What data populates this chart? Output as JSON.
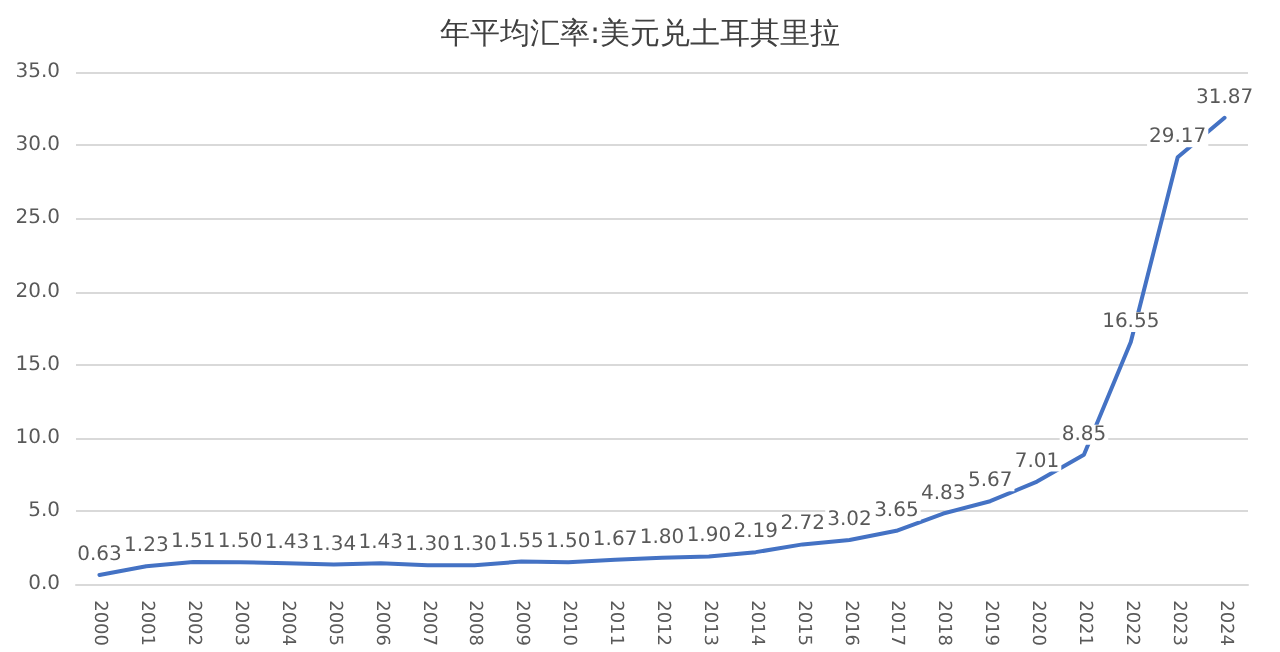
{
  "chart_data": {
    "type": "line",
    "title": "年平均汇率:美元兑土耳其里拉",
    "categories": [
      "2000",
      "2001",
      "2002",
      "2003",
      "2004",
      "2005",
      "2006",
      "2007",
      "2008",
      "2009",
      "2010",
      "2011",
      "2012",
      "2013",
      "2014",
      "2015",
      "2016",
      "2017",
      "2018",
      "2019",
      "2020",
      "2021",
      "2022",
      "2023",
      "2024"
    ],
    "series": [
      {
        "color": "#4472c4",
        "values": [
          0.63,
          1.23,
          1.51,
          1.5,
          1.43,
          1.34,
          1.43,
          1.3,
          1.3,
          1.55,
          1.5,
          1.67,
          1.8,
          1.9,
          2.19,
          2.72,
          3.02,
          3.65,
          4.83,
          5.67,
          7.01,
          8.85,
          16.55,
          29.17,
          31.87
        ],
        "value_labels": [
          "0.63",
          "1.23",
          "1.51",
          "1.50",
          "1.43",
          "1.34",
          "1.43",
          "1.30",
          "1.30",
          "1.55",
          "1.50",
          "1.67",
          "1.80",
          "1.90",
          "2.19",
          "2.72",
          "3.02",
          "3.65",
          "4.83",
          "5.67",
          "7.01",
          "8.85",
          "16.55",
          "29.17",
          "31.87"
        ]
      }
    ],
    "ylim": [
      0,
      35
    ],
    "yticks": [
      {
        "value": 0,
        "label": "0.0"
      },
      {
        "value": 5,
        "label": "5.0"
      },
      {
        "value": 10,
        "label": "10.0"
      },
      {
        "value": 15,
        "label": "15.0"
      },
      {
        "value": 20,
        "label": "20.0"
      },
      {
        "value": 25,
        "label": "25.0"
      },
      {
        "value": 30,
        "label": "30.0"
      },
      {
        "value": 35,
        "label": "35.0"
      }
    ],
    "grid": "y",
    "marker": "none",
    "line_style": "solid"
  }
}
